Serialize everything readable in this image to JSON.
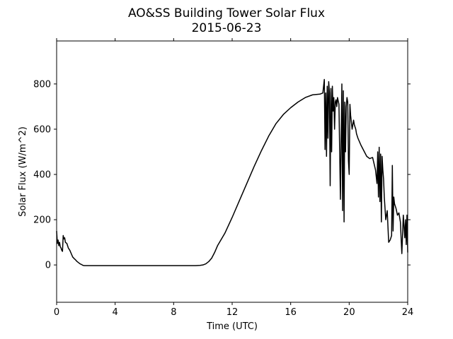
{
  "chart_data": {
    "type": "line",
    "title": "AO&SS Building Tower Solar Flux",
    "subtitle": "2015-06-23",
    "xlabel": "Time (UTC)",
    "ylabel": "Solar Flux (W/m^2)",
    "xlim": [
      0,
      24
    ],
    "ylim": [
      -165,
      990
    ],
    "xticks": [
      0,
      4,
      8,
      12,
      16,
      20,
      24
    ],
    "xtick_labels": [
      "0",
      "4",
      "8",
      "12",
      "16",
      "20",
      "24"
    ],
    "yticks": [
      0,
      200,
      400,
      600,
      800
    ],
    "ytick_labels": [
      "0",
      "200",
      "400",
      "600",
      "800"
    ],
    "grid": false,
    "line_color": "#000000",
    "series": [
      {
        "x": [
          0.0,
          0.05,
          0.1,
          0.15,
          0.2,
          0.25,
          0.3,
          0.35,
          0.4,
          0.45,
          0.5,
          0.55,
          0.6,
          0.7,
          0.8,
          0.9,
          1.0,
          1.1,
          1.2,
          1.3,
          1.4,
          1.5,
          1.6,
          1.7,
          1.8,
          1.9,
          2.0,
          2.1,
          2.2,
          2.4,
          3.0,
          4.0,
          5.0,
          6.0,
          7.0,
          8.0,
          9.0,
          9.5,
          9.8,
          10.0,
          10.2,
          10.4,
          10.6,
          10.8,
          11.0,
          11.5,
          12.0,
          12.5,
          13.0,
          13.5,
          14.0,
          14.5,
          15.0,
          15.5,
          16.0,
          16.5,
          17.0,
          17.5,
          18.0,
          18.2,
          18.3,
          18.35,
          18.4,
          18.45,
          18.5,
          18.55,
          18.6,
          18.65,
          18.7,
          18.75,
          18.8,
          18.85,
          18.9,
          18.95,
          19.0,
          19.05,
          19.1,
          19.15,
          19.2,
          19.3,
          19.4,
          19.5,
          19.55,
          19.6,
          19.65,
          19.7,
          19.75,
          19.8,
          19.85,
          19.9,
          19.95,
          20.0,
          20.05,
          20.1,
          20.2,
          20.3,
          20.35,
          20.4,
          20.45,
          20.5,
          20.6,
          20.8,
          21.0,
          21.2,
          21.4,
          21.6,
          21.8,
          21.9,
          21.95,
          22.0,
          22.05,
          22.1,
          22.15,
          22.2,
          22.25,
          22.3,
          22.35,
          22.4,
          22.5,
          22.6,
          22.7,
          22.8,
          22.9,
          22.95,
          23.0,
          23.05,
          23.1,
          23.2,
          23.3,
          23.4,
          23.5,
          23.6,
          23.7,
          23.8,
          23.85,
          23.9,
          23.95,
          24.0
        ],
        "y": [
          150,
          95,
          110,
          85,
          100,
          80,
          75,
          65,
          60,
          130,
          115,
          120,
          100,
          95,
          75,
          65,
          50,
          35,
          28,
          22,
          15,
          10,
          5,
          2,
          -2,
          -3,
          -3,
          -3,
          -3,
          -3,
          -3,
          -3,
          -3,
          -3,
          -3,
          -3,
          -3,
          -3,
          -2,
          0,
          5,
          15,
          30,
          55,
          85,
          140,
          210,
          285,
          360,
          435,
          505,
          570,
          625,
          665,
          695,
          720,
          740,
          752,
          755,
          760,
          820,
          510,
          760,
          480,
          790,
          560,
          810,
          760,
          350,
          780,
          500,
          790,
          680,
          740,
          600,
          720,
          730,
          700,
          740,
          710,
          290,
          800,
          240,
          770,
          190,
          720,
          500,
          700,
          740,
          720,
          460,
          400,
          710,
          660,
          600,
          640,
          620,
          610,
          600,
          580,
          560,
          530,
          505,
          480,
          470,
          475,
          420,
          360,
          500,
          300,
          520,
          280,
          490,
          190,
          480,
          420,
          380,
          300,
          200,
          240,
          100,
          110,
          130,
          440,
          150,
          300,
          270,
          250,
          220,
          230,
          190,
          50,
          220,
          120,
          200,
          90,
          220,
          55
        ]
      }
    ]
  }
}
